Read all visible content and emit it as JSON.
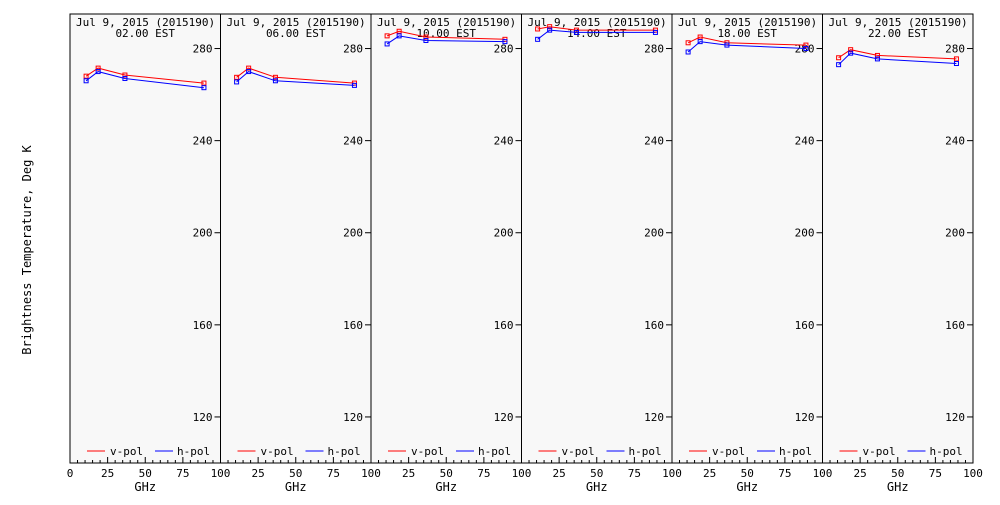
{
  "figure": {
    "ylabel": "Brightness Temperature, Deg K",
    "xlabel": "GHz",
    "legend": [
      "v-pol",
      "h-pol"
    ]
  },
  "colors": {
    "v_pol": "#ff0000",
    "h_pol": "#0000ff",
    "panel_background": "#f8f8f8",
    "frame": "#000000"
  },
  "chart_data": [
    {
      "type": "line",
      "title": "Jul  9, 2015 (2015190)",
      "subtitle": "02.00 EST",
      "xlabel": "GHz",
      "ylabel": "Brightness Temperature, Deg K",
      "xlim": [
        0,
        100
      ],
      "ylim": [
        100,
        295
      ],
      "x_ticks": [
        0,
        25,
        50,
        75,
        100
      ],
      "y_ticks": [
        120,
        160,
        200,
        240,
        280
      ],
      "grid": false,
      "legend_position": "bottom",
      "series": [
        {
          "name": "v-pol",
          "x": [
            10.7,
            18.7,
            36.5,
            89.0
          ],
          "y": [
            268,
            271.5,
            268.5,
            265
          ]
        },
        {
          "name": "h-pol",
          "x": [
            10.7,
            18.7,
            36.5,
            89.0
          ],
          "y": [
            266,
            270,
            267,
            263
          ]
        }
      ]
    },
    {
      "type": "line",
      "title": "Jul  9, 2015 (2015190)",
      "subtitle": "06.00 EST",
      "xlabel": "GHz",
      "ylabel": "Brightness Temperature, Deg K",
      "xlim": [
        0,
        100
      ],
      "ylim": [
        100,
        295
      ],
      "x_ticks": [
        0,
        25,
        50,
        75,
        100
      ],
      "y_ticks": [
        120,
        160,
        200,
        240,
        280
      ],
      "grid": false,
      "legend_position": "bottom",
      "series": [
        {
          "name": "v-pol",
          "x": [
            10.7,
            18.7,
            36.5,
            89.0
          ],
          "y": [
            267.5,
            271.5,
            267.5,
            265
          ]
        },
        {
          "name": "h-pol",
          "x": [
            10.7,
            18.7,
            36.5,
            89.0
          ],
          "y": [
            265.5,
            270,
            266,
            264
          ]
        }
      ]
    },
    {
      "type": "line",
      "title": "Jul  9, 2015 (2015190)",
      "subtitle": "10.00 EST",
      "xlabel": "GHz",
      "ylabel": "Brightness Temperature, Deg K",
      "xlim": [
        0,
        100
      ],
      "ylim": [
        100,
        295
      ],
      "x_ticks": [
        0,
        25,
        50,
        75,
        100
      ],
      "y_ticks": [
        120,
        160,
        200,
        240,
        280
      ],
      "grid": false,
      "legend_position": "bottom",
      "series": [
        {
          "name": "v-pol",
          "x": [
            10.7,
            18.7,
            36.5,
            89.0
          ],
          "y": [
            285.5,
            287.5,
            285,
            284
          ]
        },
        {
          "name": "h-pol",
          "x": [
            10.7,
            18.7,
            36.5,
            89.0
          ],
          "y": [
            282,
            285.5,
            283.5,
            283
          ]
        }
      ]
    },
    {
      "type": "line",
      "title": "Jul  9, 2015 (2015190)",
      "subtitle": "14.00 EST",
      "xlabel": "GHz",
      "ylabel": "Brightness Temperature, Deg K",
      "xlim": [
        0,
        100
      ],
      "ylim": [
        100,
        295
      ],
      "x_ticks": [
        0,
        25,
        50,
        75,
        100
      ],
      "y_ticks": [
        120,
        160,
        200,
        240,
        280
      ],
      "grid": false,
      "legend_position": "bottom",
      "series": [
        {
          "name": "v-pol",
          "x": [
            10.7,
            18.7,
            36.5,
            89.0
          ],
          "y": [
            288.5,
            289.5,
            288,
            288
          ]
        },
        {
          "name": "h-pol",
          "x": [
            10.7,
            18.7,
            36.5,
            89.0
          ],
          "y": [
            284,
            288,
            287,
            287
          ]
        }
      ]
    },
    {
      "type": "line",
      "title": "Jul  9, 2015 (2015190)",
      "subtitle": "18.00 EST",
      "xlabel": "GHz",
      "ylabel": "Brightness Temperature, Deg K",
      "xlim": [
        0,
        100
      ],
      "ylim": [
        100,
        295
      ],
      "x_ticks": [
        0,
        25,
        50,
        75,
        100
      ],
      "y_ticks": [
        120,
        160,
        200,
        240,
        280
      ],
      "grid": false,
      "legend_position": "bottom",
      "series": [
        {
          "name": "v-pol",
          "x": [
            10.7,
            18.7,
            36.5,
            89.0
          ],
          "y": [
            282.5,
            285,
            282.5,
            281.5
          ]
        },
        {
          "name": "h-pol",
          "x": [
            10.7,
            18.7,
            36.5,
            89.0
          ],
          "y": [
            278.5,
            283,
            281.5,
            280
          ]
        }
      ]
    },
    {
      "type": "line",
      "title": "Jul  9, 2015 (2015190)",
      "subtitle": "22.00 EST",
      "xlabel": "GHz",
      "ylabel": "Brightness Temperature, Deg K",
      "xlim": [
        0,
        100
      ],
      "ylim": [
        100,
        295
      ],
      "x_ticks": [
        0,
        25,
        50,
        75,
        100
      ],
      "y_ticks": [
        120,
        160,
        200,
        240,
        280
      ],
      "grid": false,
      "legend_position": "bottom",
      "series": [
        {
          "name": "v-pol",
          "x": [
            10.7,
            18.7,
            36.5,
            89.0
          ],
          "y": [
            276,
            279.5,
            277,
            275.5
          ]
        },
        {
          "name": "h-pol",
          "x": [
            10.7,
            18.7,
            36.5,
            89.0
          ],
          "y": [
            273,
            278,
            275.5,
            273.5
          ]
        }
      ]
    }
  ]
}
